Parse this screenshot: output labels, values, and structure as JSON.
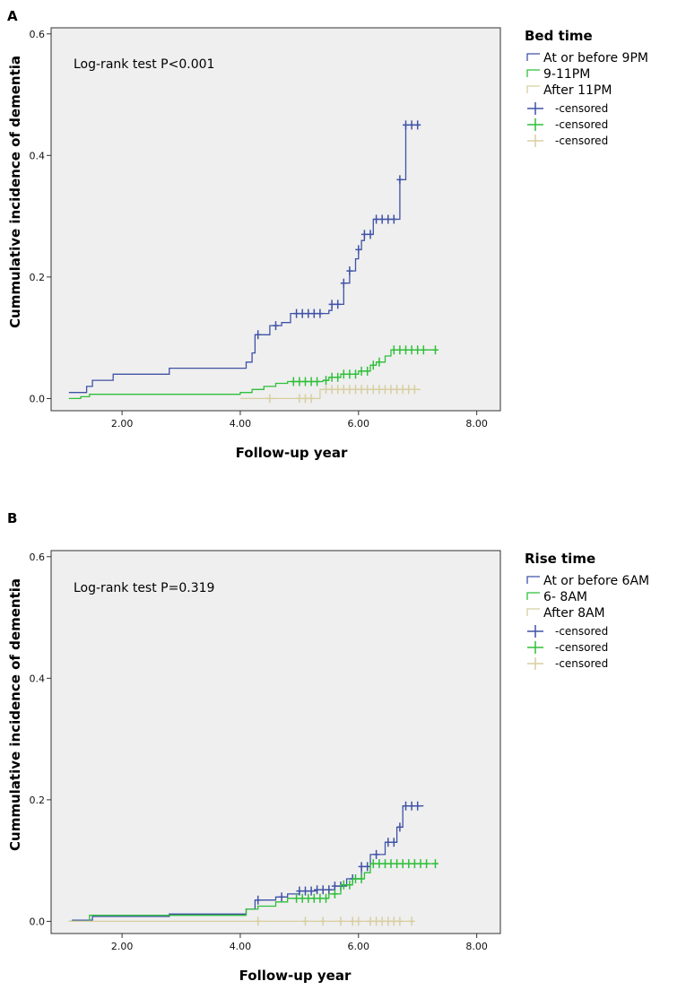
{
  "colors": {
    "series1": "#3f52a6",
    "series2": "#2fbf39",
    "series3": "#d8cea0",
    "plot_bg": "#efefef",
    "axis": "#333333"
  },
  "chart_data": [
    {
      "panel_label": "A",
      "type": "line",
      "title": "",
      "annotation": "Log-rank test P<0.001",
      "xlabel": "Follow-up year",
      "ylabel": "Cummulative incidence of dementia",
      "xlim": [
        0.8,
        8.4
      ],
      "ylim": [
        -0.02,
        0.61
      ],
      "xticks": [
        2,
        4,
        6,
        8
      ],
      "xtick_labels": [
        "2.00",
        "4.00",
        "6.00",
        "8.00"
      ],
      "yticks": [
        0,
        0.2,
        0.4,
        0.6
      ],
      "ytick_labels": [
        "0.0",
        "0.2",
        "0.4",
        "0.6"
      ],
      "legend_title": "Bed time",
      "legend_censored_label": "-censored",
      "series": [
        {
          "name": "At or before 9PM",
          "steps": [
            [
              1.1,
              0.01
            ],
            [
              1.4,
              0.02
            ],
            [
              1.5,
              0.03
            ],
            [
              1.85,
              0.04
            ],
            [
              2.8,
              0.05
            ],
            [
              4.1,
              0.06
            ],
            [
              4.2,
              0.075
            ],
            [
              4.25,
              0.105
            ],
            [
              4.5,
              0.12
            ],
            [
              4.7,
              0.125
            ],
            [
              4.85,
              0.14
            ],
            [
              5.5,
              0.145
            ],
            [
              5.55,
              0.155
            ],
            [
              5.7,
              0.155
            ],
            [
              5.75,
              0.19
            ],
            [
              5.85,
              0.21
            ],
            [
              5.95,
              0.23
            ],
            [
              6.0,
              0.245
            ],
            [
              6.05,
              0.26
            ],
            [
              6.1,
              0.27
            ],
            [
              6.25,
              0.295
            ],
            [
              6.7,
              0.36
            ],
            [
              6.8,
              0.45
            ],
            [
              7.05,
              0.45
            ]
          ],
          "censored": [
            [
              4.3,
              0.105
            ],
            [
              4.6,
              0.12
            ],
            [
              4.95,
              0.14
            ],
            [
              5.05,
              0.14
            ],
            [
              5.15,
              0.14
            ],
            [
              5.25,
              0.14
            ],
            [
              5.35,
              0.14
            ],
            [
              5.55,
              0.155
            ],
            [
              5.65,
              0.155
            ],
            [
              5.75,
              0.19
            ],
            [
              5.85,
              0.21
            ],
            [
              6.0,
              0.245
            ],
            [
              6.1,
              0.27
            ],
            [
              6.2,
              0.27
            ],
            [
              6.3,
              0.295
            ],
            [
              6.4,
              0.295
            ],
            [
              6.5,
              0.295
            ],
            [
              6.6,
              0.295
            ],
            [
              6.7,
              0.36
            ],
            [
              6.8,
              0.45
            ],
            [
              6.9,
              0.45
            ],
            [
              7.0,
              0.45
            ]
          ]
        },
        {
          "name": "9-11PM",
          "steps": [
            [
              1.1,
              0
            ],
            [
              1.3,
              0.003
            ],
            [
              1.45,
              0.007
            ],
            [
              4.0,
              0.01
            ],
            [
              4.2,
              0.015
            ],
            [
              4.4,
              0.02
            ],
            [
              4.6,
              0.025
            ],
            [
              4.8,
              0.028
            ],
            [
              5.4,
              0.03
            ],
            [
              5.5,
              0.035
            ],
            [
              5.7,
              0.04
            ],
            [
              6.0,
              0.045
            ],
            [
              6.2,
              0.055
            ],
            [
              6.3,
              0.06
            ],
            [
              6.45,
              0.07
            ],
            [
              6.55,
              0.08
            ],
            [
              7.3,
              0.08
            ]
          ],
          "censored": [
            [
              4.9,
              0.028
            ],
            [
              5.0,
              0.028
            ],
            [
              5.1,
              0.028
            ],
            [
              5.2,
              0.028
            ],
            [
              5.3,
              0.028
            ],
            [
              5.45,
              0.03
            ],
            [
              5.55,
              0.035
            ],
            [
              5.65,
              0.035
            ],
            [
              5.75,
              0.04
            ],
            [
              5.85,
              0.04
            ],
            [
              5.95,
              0.04
            ],
            [
              6.05,
              0.045
            ],
            [
              6.15,
              0.045
            ],
            [
              6.25,
              0.055
            ],
            [
              6.35,
              0.06
            ],
            [
              6.6,
              0.08
            ],
            [
              6.7,
              0.08
            ],
            [
              6.8,
              0.08
            ],
            [
              6.9,
              0.08
            ],
            [
              7.0,
              0.08
            ],
            [
              7.1,
              0.08
            ],
            [
              7.3,
              0.08
            ]
          ]
        },
        {
          "name": "After 11PM",
          "steps": [
            [
              4.0,
              0
            ],
            [
              5.3,
              0
            ],
            [
              5.35,
              0.015
            ],
            [
              7.05,
              0.015
            ]
          ],
          "censored": [
            [
              4.5,
              0
            ],
            [
              5.0,
              0
            ],
            [
              5.1,
              0
            ],
            [
              5.2,
              0
            ],
            [
              5.45,
              0.015
            ],
            [
              5.55,
              0.015
            ],
            [
              5.65,
              0.015
            ],
            [
              5.75,
              0.015
            ],
            [
              5.85,
              0.015
            ],
            [
              5.95,
              0.015
            ],
            [
              6.05,
              0.015
            ],
            [
              6.15,
              0.015
            ],
            [
              6.25,
              0.015
            ],
            [
              6.35,
              0.015
            ],
            [
              6.45,
              0.015
            ],
            [
              6.55,
              0.015
            ],
            [
              6.65,
              0.015
            ],
            [
              6.75,
              0.015
            ],
            [
              6.85,
              0.015
            ],
            [
              6.95,
              0.015
            ]
          ]
        }
      ]
    },
    {
      "panel_label": "B",
      "type": "line",
      "title": "",
      "annotation": "Log-rank test P=0.319",
      "xlabel": "Follow-up year",
      "ylabel": "Cummulative incidence of dementia",
      "xlim": [
        0.8,
        8.4
      ],
      "ylim": [
        -0.02,
        0.61
      ],
      "xticks": [
        2,
        4,
        6,
        8
      ],
      "xtick_labels": [
        "2.00",
        "4.00",
        "6.00",
        "8.00"
      ],
      "yticks": [
        0,
        0.2,
        0.4,
        0.6
      ],
      "ytick_labels": [
        "0.0",
        "0.2",
        "0.4",
        "0.6"
      ],
      "legend_title": "Rise time",
      "legend_censored_label": "-censored",
      "series": [
        {
          "name": "At or before 6AM",
          "steps": [
            [
              1.15,
              0.002
            ],
            [
              1.5,
              0.008
            ],
            [
              2.8,
              0.012
            ],
            [
              4.1,
              0.02
            ],
            [
              4.25,
              0.035
            ],
            [
              4.6,
              0.04
            ],
            [
              4.8,
              0.045
            ],
            [
              5.0,
              0.05
            ],
            [
              5.3,
              0.052
            ],
            [
              5.6,
              0.058
            ],
            [
              5.8,
              0.07
            ],
            [
              6.05,
              0.09
            ],
            [
              6.2,
              0.11
            ],
            [
              6.45,
              0.13
            ],
            [
              6.65,
              0.155
            ],
            [
              6.75,
              0.19
            ],
            [
              7.1,
              0.19
            ]
          ],
          "censored": [
            [
              4.3,
              0.035
            ],
            [
              4.7,
              0.04
            ],
            [
              5.0,
              0.05
            ],
            [
              5.1,
              0.05
            ],
            [
              5.2,
              0.05
            ],
            [
              5.3,
              0.052
            ],
            [
              5.4,
              0.052
            ],
            [
              5.5,
              0.052
            ],
            [
              5.6,
              0.058
            ],
            [
              5.7,
              0.058
            ],
            [
              5.9,
              0.07
            ],
            [
              6.05,
              0.09
            ],
            [
              6.15,
              0.09
            ],
            [
              6.3,
              0.11
            ],
            [
              6.5,
              0.13
            ],
            [
              6.6,
              0.13
            ],
            [
              6.7,
              0.155
            ],
            [
              6.8,
              0.19
            ],
            [
              6.9,
              0.19
            ],
            [
              7.0,
              0.19
            ]
          ]
        },
        {
          "name": "6- 8AM",
          "steps": [
            [
              1.1,
              0
            ],
            [
              1.45,
              0.01
            ],
            [
              3.9,
              0.01
            ],
            [
              4.1,
              0.02
            ],
            [
              4.3,
              0.025
            ],
            [
              4.6,
              0.032
            ],
            [
              4.8,
              0.038
            ],
            [
              5.5,
              0.045
            ],
            [
              5.7,
              0.06
            ],
            [
              5.9,
              0.07
            ],
            [
              6.1,
              0.08
            ],
            [
              6.2,
              0.095
            ],
            [
              7.3,
              0.095
            ]
          ],
          "censored": [
            [
              4.95,
              0.038
            ],
            [
              5.05,
              0.038
            ],
            [
              5.15,
              0.038
            ],
            [
              5.25,
              0.038
            ],
            [
              5.35,
              0.038
            ],
            [
              5.45,
              0.038
            ],
            [
              5.6,
              0.045
            ],
            [
              5.75,
              0.06
            ],
            [
              5.85,
              0.06
            ],
            [
              5.95,
              0.07
            ],
            [
              6.05,
              0.07
            ],
            [
              6.25,
              0.095
            ],
            [
              6.35,
              0.095
            ],
            [
              6.45,
              0.095
            ],
            [
              6.55,
              0.095
            ],
            [
              6.65,
              0.095
            ],
            [
              6.75,
              0.095
            ],
            [
              6.85,
              0.095
            ],
            [
              6.95,
              0.095
            ],
            [
              7.05,
              0.095
            ],
            [
              7.15,
              0.095
            ],
            [
              7.3,
              0.095
            ]
          ]
        },
        {
          "name": "After 8AM",
          "steps": [
            [
              1.1,
              0
            ],
            [
              6.95,
              0
            ]
          ],
          "censored": [
            [
              4.3,
              0
            ],
            [
              5.1,
              0
            ],
            [
              5.4,
              0
            ],
            [
              5.7,
              0
            ],
            [
              5.9,
              0
            ],
            [
              6.0,
              0
            ],
            [
              6.2,
              0
            ],
            [
              6.3,
              0
            ],
            [
              6.4,
              0
            ],
            [
              6.5,
              0
            ],
            [
              6.6,
              0
            ],
            [
              6.7,
              0
            ],
            [
              6.9,
              0
            ]
          ]
        }
      ]
    }
  ]
}
